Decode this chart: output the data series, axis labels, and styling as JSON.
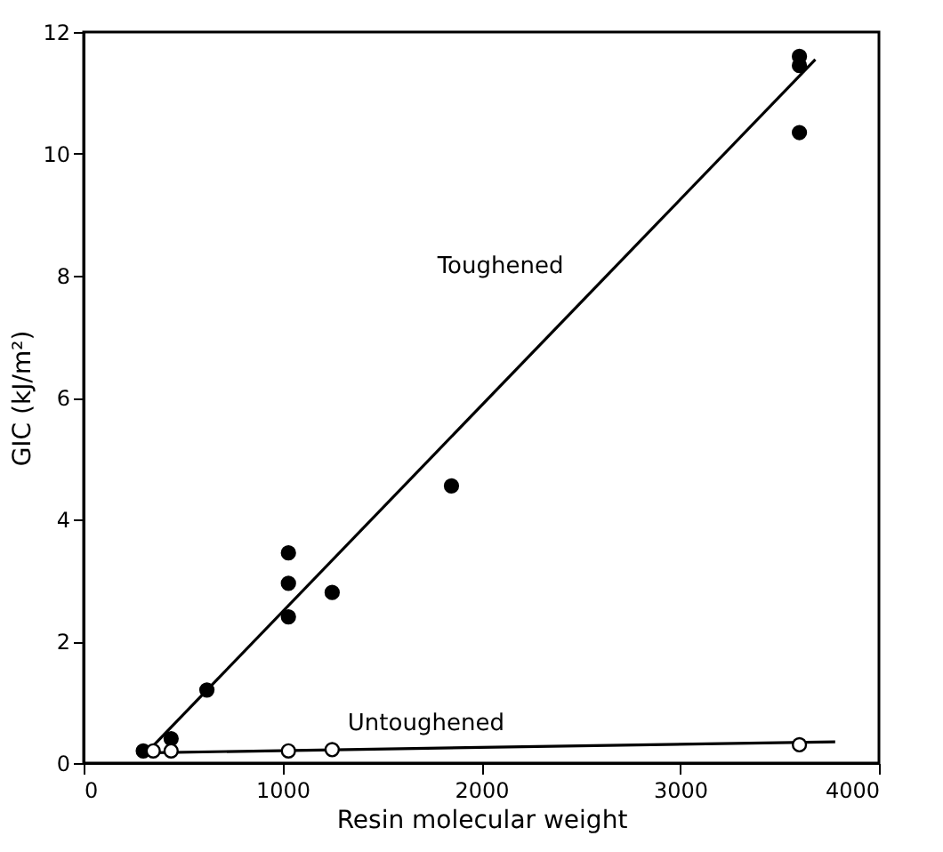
{
  "chart_data": {
    "type": "scatter",
    "xlabel": "Resin molecular weight",
    "ylabel": "GIC (kJ/m²)",
    "xlim": [
      0,
      4000
    ],
    "xticks": [
      0,
      1000,
      2000,
      3000,
      4000
    ],
    "ylim": [
      0,
      12
    ],
    "yticks": [
      0,
      2,
      4,
      6,
      8,
      10,
      12
    ],
    "grid": false,
    "marker": "circle",
    "series": [
      {
        "color": "#000000",
        "x": [
          300,
          440,
          620,
          1030,
          1030,
          1030,
          1250,
          1850,
          3600,
          3600,
          3600
        ],
        "values": [
          0.2,
          0.4,
          1.2,
          3.45,
          2.95,
          2.4,
          2.8,
          4.55,
          11.6,
          11.45,
          10.35
        ]
      },
      {
        "type": "line",
        "marker": "none",
        "line_style": "solid",
        "color": "#000000",
        "x": [
          340,
          3680
        ],
        "values": [
          0.25,
          11.55
        ]
      },
      {
        "type": "line",
        "marker": "none",
        "line_style": "solid",
        "color": "#000000",
        "x": [
          350,
          3780
        ],
        "values": [
          0.17,
          0.35
        ]
      },
      {
        "color": "#ffffff",
        "x": [
          350,
          440,
          1030,
          1250,
          3600
        ],
        "values": [
          0.2,
          0.2,
          0.2,
          0.22,
          0.3
        ]
      }
    ],
    "annotations": [
      "Toughened",
      "Untoughened"
    ]
  }
}
